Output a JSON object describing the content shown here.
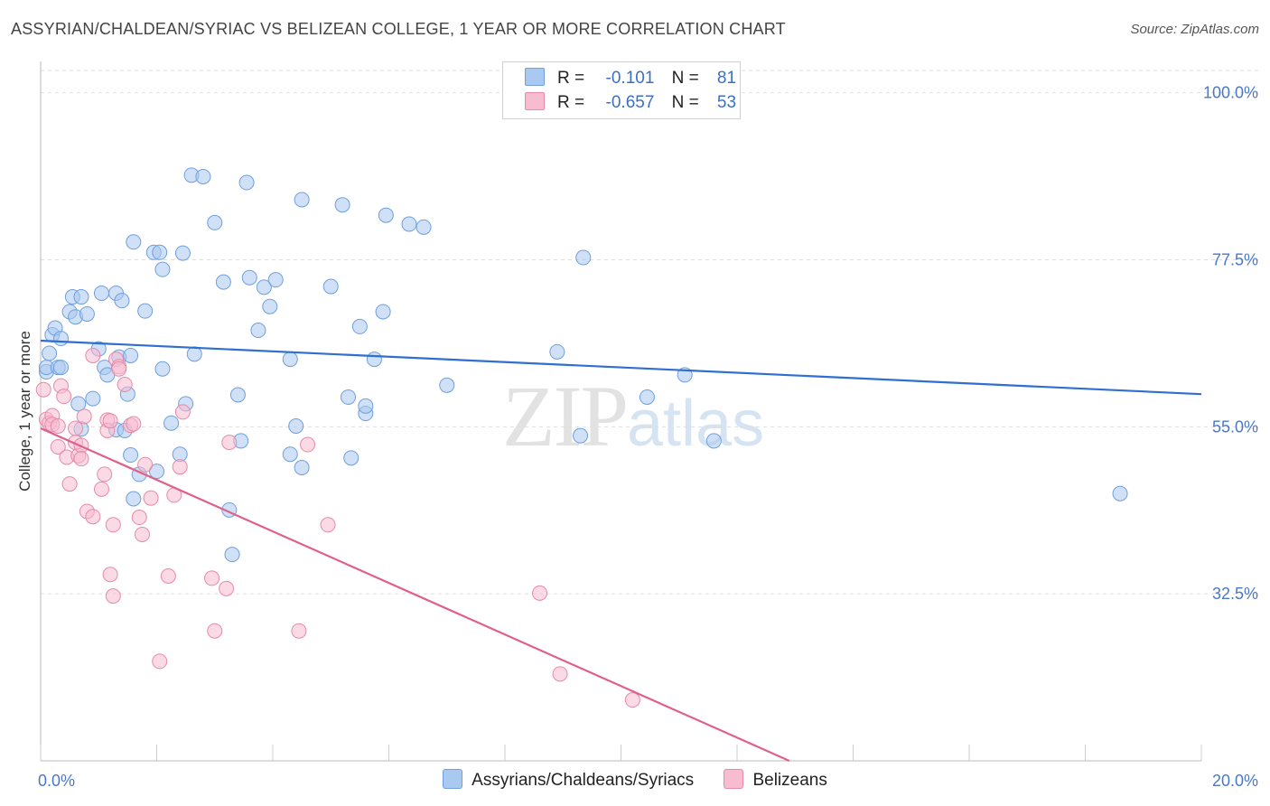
{
  "header": {
    "title": "ASSYRIAN/CHALDEAN/SYRIAC VS BELIZEAN COLLEGE, 1 YEAR OR MORE CORRELATION CHART",
    "source": "Source: ZipAtlas.com"
  },
  "watermark": {
    "zip": "ZIP",
    "atlas": "atlas"
  },
  "legend": {
    "rows": [
      {
        "r_label": "R =",
        "r_value": "-0.101",
        "n_label": "N =",
        "n_value": "81",
        "color": "#a9c9f0",
        "edge": "#6f9fdc"
      },
      {
        "r_label": "R =",
        "r_value": "-0.657",
        "n_label": "N =",
        "n_value": "53",
        "color": "#f7bcd0",
        "edge": "#e58aa8"
      }
    ]
  },
  "bottom_legend": [
    {
      "label": "Assyrians/Chaldeans/Syriacs",
      "color": "#a9c9f0",
      "edge": "#6f9fdc"
    },
    {
      "label": "Belizeans",
      "color": "#f7bcd0",
      "edge": "#e58aa8"
    }
  ],
  "chart_data": {
    "type": "scatter",
    "title": "ASSYRIAN/CHALDEAN/SYRIAC VS BELIZEAN COLLEGE, 1 YEAR OR MORE CORRELATION CHART",
    "xlabel": "",
    "ylabel": "College, 1 year or more",
    "xlim": [
      0,
      20
    ],
    "ylim": [
      10,
      103
    ],
    "x_tick_labels": [
      "0.0%",
      "20.0%"
    ],
    "y_ticks": [
      32.5,
      55.0,
      77.5,
      100.0
    ],
    "y_tick_labels": [
      "32.5%",
      "55.0%",
      "77.5%",
      "100.0%"
    ],
    "grid": true,
    "series": [
      {
        "name": "Assyrians/Chaldeans/Syriacs",
        "color": "#6f9fdc",
        "fill": "#a9c9f0",
        "trend": {
          "x": [
            0,
            20
          ],
          "y": [
            66.6,
            59.4
          ],
          "color": "#2f6fd0"
        },
        "points": [
          [
            0.1,
            62.4
          ],
          [
            0.1,
            63.0
          ],
          [
            0.15,
            64.9
          ],
          [
            0.2,
            67.4
          ],
          [
            0.25,
            68.3
          ],
          [
            0.3,
            63.0
          ],
          [
            0.35,
            63.0
          ],
          [
            0.35,
            66.9
          ],
          [
            0.5,
            70.5
          ],
          [
            0.55,
            72.5
          ],
          [
            0.6,
            69.8
          ],
          [
            0.7,
            72.5
          ],
          [
            0.8,
            70.2
          ],
          [
            0.65,
            58.1
          ],
          [
            0.9,
            58.8
          ],
          [
            0.7,
            54.7
          ],
          [
            1.05,
            73.0
          ],
          [
            1.1,
            63.0
          ],
          [
            1.15,
            62.0
          ],
          [
            1.3,
            73.0
          ],
          [
            1.35,
            64.4
          ],
          [
            1.4,
            72.0
          ],
          [
            1.55,
            64.6
          ],
          [
            1.5,
            59.4
          ],
          [
            1.3,
            54.6
          ],
          [
            1.45,
            54.5
          ],
          [
            1.55,
            51.2
          ],
          [
            1.6,
            45.3
          ],
          [
            1.7,
            48.6
          ],
          [
            1.8,
            70.6
          ],
          [
            1.6,
            79.9
          ],
          [
            1.95,
            78.5
          ],
          [
            2.05,
            78.5
          ],
          [
            2.1,
            76.2
          ],
          [
            2.1,
            62.8
          ],
          [
            2.25,
            55.5
          ],
          [
            2.4,
            51.3
          ],
          [
            2.45,
            78.4
          ],
          [
            2.5,
            58.1
          ],
          [
            2.6,
            88.9
          ],
          [
            2.65,
            64.8
          ],
          [
            2.8,
            88.7
          ],
          [
            3.0,
            82.5
          ],
          [
            3.15,
            74.5
          ],
          [
            3.25,
            43.8
          ],
          [
            3.4,
            59.3
          ],
          [
            3.45,
            53.1
          ],
          [
            3.55,
            87.9
          ],
          [
            3.6,
            75.1
          ],
          [
            3.85,
            73.8
          ],
          [
            3.95,
            71.2
          ],
          [
            4.05,
            74.8
          ],
          [
            4.3,
            51.3
          ],
          [
            4.3,
            64.1
          ],
          [
            4.4,
            55.1
          ],
          [
            4.5,
            49.5
          ],
          [
            3.3,
            37.8
          ],
          [
            4.5,
            85.6
          ],
          [
            5.0,
            73.9
          ],
          [
            5.2,
            84.9
          ],
          [
            5.3,
            59.0
          ],
          [
            5.35,
            50.8
          ],
          [
            5.5,
            68.5
          ],
          [
            5.6,
            56.8
          ],
          [
            5.6,
            57.8
          ],
          [
            5.75,
            64.1
          ],
          [
            5.9,
            70.5
          ],
          [
            5.95,
            83.5
          ],
          [
            6.35,
            82.3
          ],
          [
            6.6,
            81.9
          ],
          [
            7.0,
            60.6
          ],
          [
            8.9,
            65.1
          ],
          [
            9.3,
            53.8
          ],
          [
            9.35,
            77.8
          ],
          [
            10.45,
            59.0
          ],
          [
            11.1,
            62.0
          ],
          [
            11.6,
            53.1
          ],
          [
            18.6,
            46.0
          ],
          [
            1.0,
            65.5
          ],
          [
            2.0,
            49.0
          ],
          [
            3.75,
            68.0
          ]
        ]
      },
      {
        "name": "Belizeans",
        "color": "#e58aa8",
        "fill": "#f7bcd0",
        "trend": {
          "x": [
            0,
            12.9
          ],
          "y": [
            54.8,
            10.0
          ],
          "color": "#e0608a"
        },
        "points": [
          [
            0.05,
            60.0
          ],
          [
            0.1,
            56.0
          ],
          [
            0.15,
            55.5
          ],
          [
            0.2,
            56.5
          ],
          [
            0.2,
            55.3
          ],
          [
            0.3,
            55.1
          ],
          [
            0.35,
            60.5
          ],
          [
            0.4,
            59.1
          ],
          [
            0.3,
            52.3
          ],
          [
            0.45,
            50.9
          ],
          [
            0.6,
            54.8
          ],
          [
            0.5,
            47.3
          ],
          [
            0.6,
            52.9
          ],
          [
            0.65,
            51.1
          ],
          [
            0.7,
            52.5
          ],
          [
            0.75,
            56.4
          ],
          [
            0.7,
            50.7
          ],
          [
            0.8,
            43.6
          ],
          [
            0.9,
            42.9
          ],
          [
            0.9,
            64.6
          ],
          [
            1.05,
            46.6
          ],
          [
            1.1,
            48.6
          ],
          [
            1.15,
            55.9
          ],
          [
            1.15,
            54.5
          ],
          [
            1.2,
            55.8
          ],
          [
            1.25,
            41.8
          ],
          [
            1.3,
            64.1
          ],
          [
            1.35,
            63.1
          ],
          [
            1.35,
            62.8
          ],
          [
            1.45,
            60.7
          ],
          [
            1.55,
            55.2
          ],
          [
            1.6,
            55.4
          ],
          [
            1.7,
            42.8
          ],
          [
            1.75,
            40.5
          ],
          [
            1.8,
            49.9
          ],
          [
            1.9,
            45.4
          ],
          [
            2.3,
            45.8
          ],
          [
            2.4,
            49.6
          ],
          [
            2.45,
            57.0
          ],
          [
            1.2,
            35.1
          ],
          [
            1.25,
            32.2
          ],
          [
            2.2,
            34.9
          ],
          [
            2.95,
            34.6
          ],
          [
            3.2,
            33.2
          ],
          [
            3.0,
            27.5
          ],
          [
            2.05,
            23.4
          ],
          [
            3.25,
            52.9
          ],
          [
            4.6,
            52.6
          ],
          [
            4.45,
            27.5
          ],
          [
            4.95,
            41.8
          ],
          [
            8.6,
            32.6
          ],
          [
            8.95,
            21.7
          ],
          [
            10.2,
            18.2
          ]
        ]
      }
    ]
  }
}
